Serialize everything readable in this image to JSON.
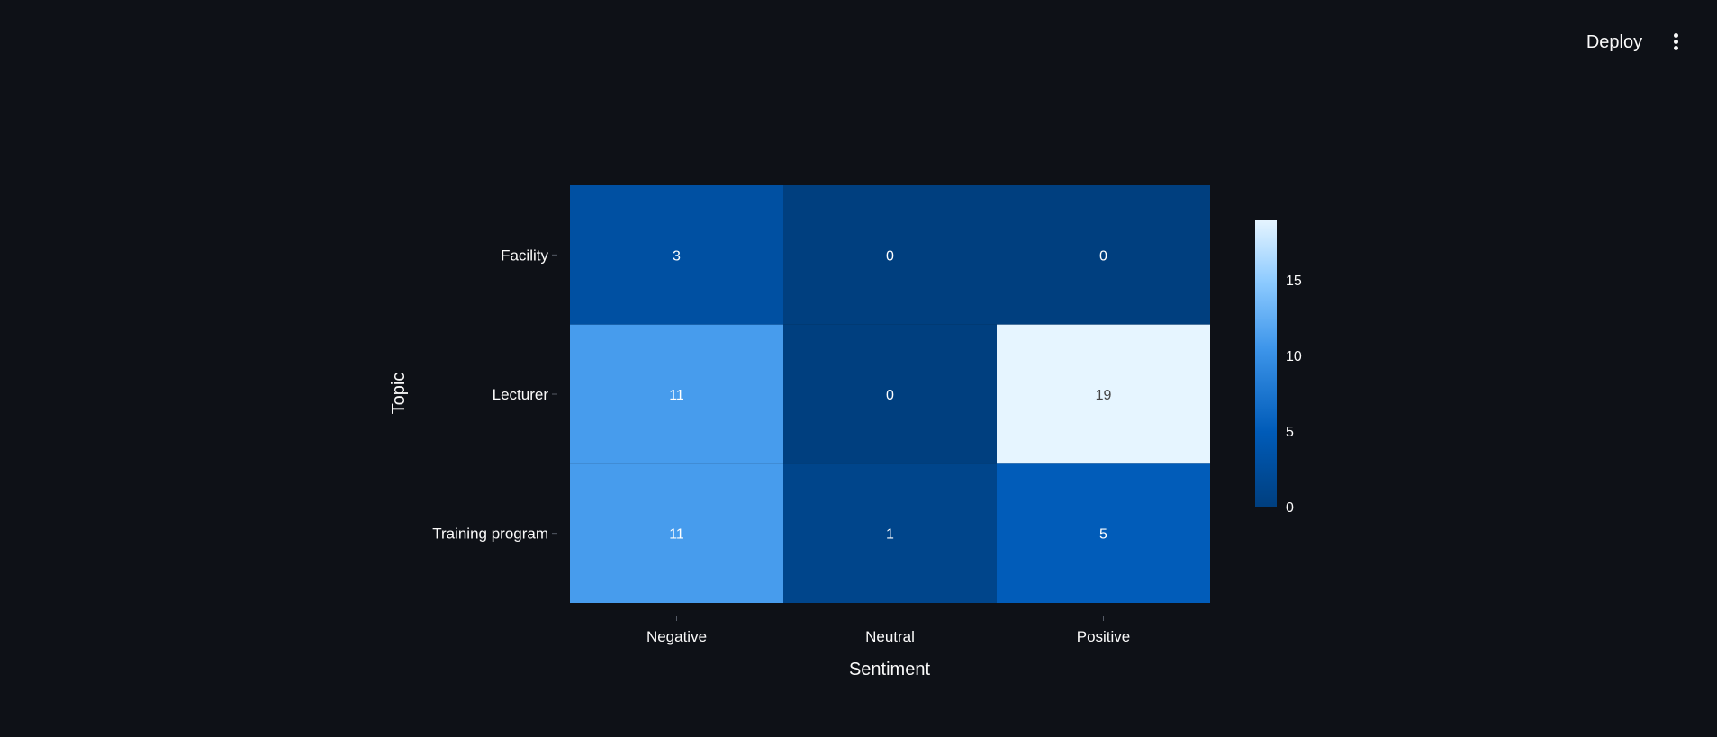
{
  "toolbar": {
    "deploy_label": "Deploy",
    "menu_icon": "more-vertical-icon"
  },
  "chart_data": {
    "type": "heatmap",
    "title": "",
    "xlabel": "Sentiment",
    "ylabel": "Topic",
    "x_categories": [
      "Negative",
      "Neutral",
      "Positive"
    ],
    "y_categories": [
      "Facility",
      "Lecturer",
      "Training program"
    ],
    "z": [
      [
        3,
        0,
        0
      ],
      [
        11,
        0,
        19
      ],
      [
        11,
        1,
        5
      ]
    ],
    "colorscale": "Blues",
    "colorbar": {
      "range": [
        0,
        19
      ],
      "ticks": [
        0,
        5,
        10,
        15
      ]
    },
    "colors": {
      "background": "#0e1117",
      "scale_low": "#003f7f",
      "scale_high": "#e6f5ff"
    }
  }
}
